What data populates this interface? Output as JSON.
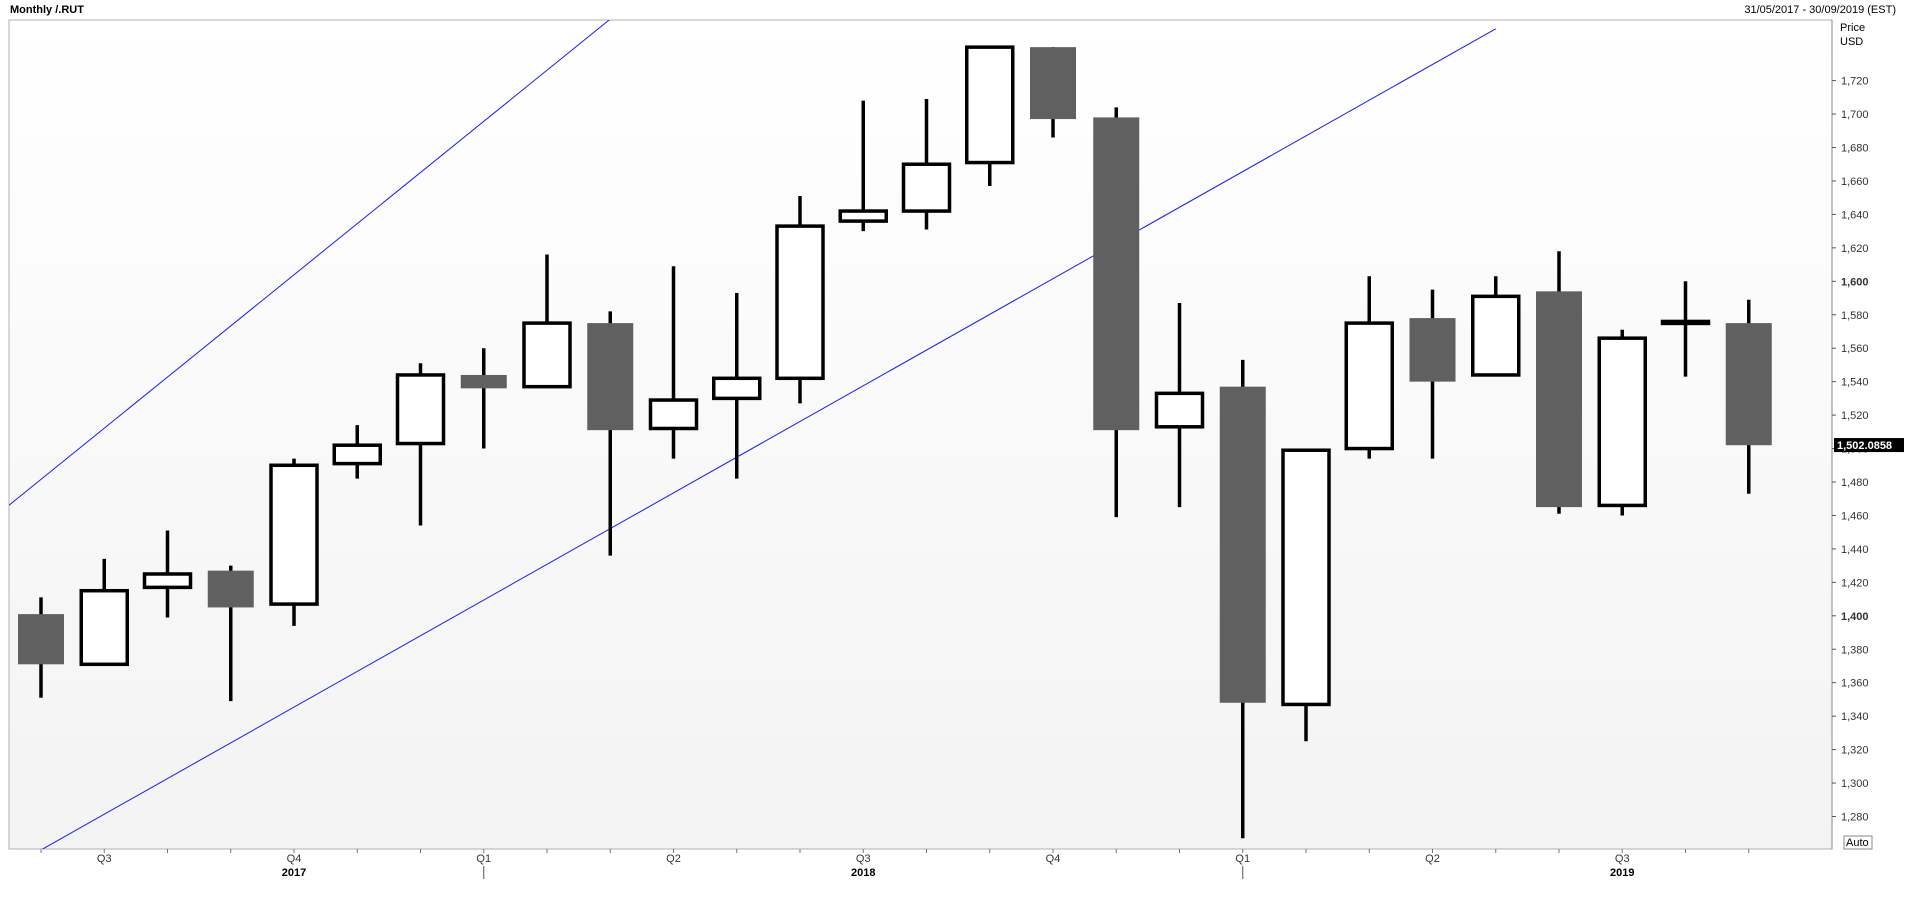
{
  "header": {
    "title": "Monthly /.RUT",
    "date_range": "31/05/2017 - 30/09/2019 (EST)"
  },
  "axis": {
    "price_label": "Price",
    "currency_label": "USD",
    "auto_label": "Auto",
    "last_price_label": "1,502.0858"
  },
  "colors": {
    "up_body": "#ffffff",
    "down_body": "#606060",
    "outline": "#000000",
    "channel": "#1a1aff",
    "plot_bg_top": "#ffffff",
    "plot_bg_bottom": "#f3f3f3"
  },
  "chart_data": {
    "type": "candlestick",
    "ylim": [
      1260,
      1750
    ],
    "yticks": [
      1280,
      1300,
      1320,
      1340,
      1360,
      1380,
      1400,
      1420,
      1440,
      1460,
      1480,
      1500,
      1520,
      1540,
      1560,
      1580,
      1600,
      1620,
      1640,
      1660,
      1680,
      1700,
      1720
    ],
    "ytick_labels": [
      "1,280",
      "1,300",
      "1,320",
      "1,340",
      "1,360",
      "1,380",
      "1,400",
      "1,420",
      "1,440",
      "1,460",
      "1,480",
      "1,500",
      "1,520",
      "1,540",
      "1,560",
      "1,580",
      "1,600",
      "1,620",
      "1,640",
      "1,660",
      "1,680",
      "1,700",
      "1,720"
    ],
    "bold_ticks": [
      1400,
      1600
    ],
    "last_price": 1502.0858,
    "candles": [
      {
        "date": "2017-05",
        "open": 1401,
        "high": 1411,
        "low": 1351,
        "close": 1371
      },
      {
        "date": "2017-06",
        "open": 1371,
        "high": 1434,
        "low": 1371,
        "close": 1415
      },
      {
        "date": "2017-07",
        "open": 1417,
        "high": 1451,
        "low": 1399,
        "close": 1425
      },
      {
        "date": "2017-08",
        "open": 1427,
        "high": 1430,
        "low": 1349,
        "close": 1405
      },
      {
        "date": "2017-09",
        "open": 1407,
        "high": 1494,
        "low": 1394,
        "close": 1490
      },
      {
        "date": "2017-10",
        "open": 1491,
        "high": 1514,
        "low": 1482,
        "close": 1502
      },
      {
        "date": "2017-11",
        "open": 1503,
        "high": 1551,
        "low": 1454,
        "close": 1544
      },
      {
        "date": "2017-12",
        "open": 1544,
        "high": 1560,
        "low": 1500,
        "close": 1536
      },
      {
        "date": "2018-01",
        "open": 1537,
        "high": 1616,
        "low": 1537,
        "close": 1575
      },
      {
        "date": "2018-02",
        "open": 1575,
        "high": 1582,
        "low": 1436,
        "close": 1511
      },
      {
        "date": "2018-03",
        "open": 1512,
        "high": 1609,
        "low": 1494,
        "close": 1529
      },
      {
        "date": "2018-04",
        "open": 1530,
        "high": 1593,
        "low": 1482,
        "close": 1542
      },
      {
        "date": "2018-05",
        "open": 1542,
        "high": 1651,
        "low": 1527,
        "close": 1633
      },
      {
        "date": "2018-06",
        "open": 1636,
        "high": 1708,
        "low": 1630,
        "close": 1642
      },
      {
        "date": "2018-07",
        "open": 1642,
        "high": 1709,
        "low": 1631,
        "close": 1670
      },
      {
        "date": "2018-08",
        "open": 1671,
        "high": 1741,
        "low": 1657,
        "close": 1740
      },
      {
        "date": "2018-09",
        "open": 1740,
        "high": 1740,
        "low": 1686,
        "close": 1697
      },
      {
        "date": "2018-10",
        "open": 1698,
        "high": 1704,
        "low": 1459,
        "close": 1511
      },
      {
        "date": "2018-11",
        "open": 1513,
        "high": 1587,
        "low": 1465,
        "close": 1533
      },
      {
        "date": "2018-12",
        "open": 1537,
        "high": 1553,
        "low": 1267,
        "close": 1348
      },
      {
        "date": "2019-01",
        "open": 1347,
        "high": 1500,
        "low": 1325,
        "close": 1499
      },
      {
        "date": "2019-02",
        "open": 1500,
        "high": 1603,
        "low": 1494,
        "close": 1575
      },
      {
        "date": "2019-03",
        "open": 1578,
        "high": 1595,
        "low": 1494,
        "close": 1540
      },
      {
        "date": "2019-04",
        "open": 1544,
        "high": 1603,
        "low": 1544,
        "close": 1591
      },
      {
        "date": "2019-05",
        "open": 1594,
        "high": 1618,
        "low": 1461,
        "close": 1465
      },
      {
        "date": "2019-06",
        "open": 1466,
        "high": 1571,
        "low": 1460,
        "close": 1566
      },
      {
        "date": "2019-07",
        "open": 1575,
        "high": 1600,
        "low": 1543,
        "close": 1576
      },
      {
        "date": "2019-08",
        "open": 1575,
        "high": 1589,
        "low": 1473,
        "close": 1502
      }
    ],
    "channel_lines": [
      {
        "name": "upper",
        "x1": "2017-04",
        "y1": 1451,
        "x2": "2018-11",
        "y2": 2032
      },
      {
        "name": "lower",
        "x1": "2017-05",
        "y1": 1260,
        "x2": "2019-04",
        "y2": 1751
      }
    ],
    "x_quarter_labels": [
      {
        "label": "Q3",
        "at": "2017-06"
      },
      {
        "label": "Q4",
        "at": "2017-09"
      },
      {
        "label": "Q1",
        "at": "2017-12"
      },
      {
        "label": "Q2",
        "at": "2018-03"
      },
      {
        "label": "Q3",
        "at": "2018-06"
      },
      {
        "label": "Q4",
        "at": "2018-09"
      },
      {
        "label": "Q1",
        "at": "2018-12"
      },
      {
        "label": "Q2",
        "at": "2019-03"
      },
      {
        "label": "Q3",
        "at": "2019-06"
      }
    ],
    "x_year_labels": [
      {
        "label": "2017",
        "at": "2017-09"
      },
      {
        "label": "2018",
        "at": "2018-06"
      },
      {
        "label": "2019",
        "at": "2019-06"
      }
    ],
    "year_separators": [
      "2017-12",
      "2018-12"
    ]
  }
}
